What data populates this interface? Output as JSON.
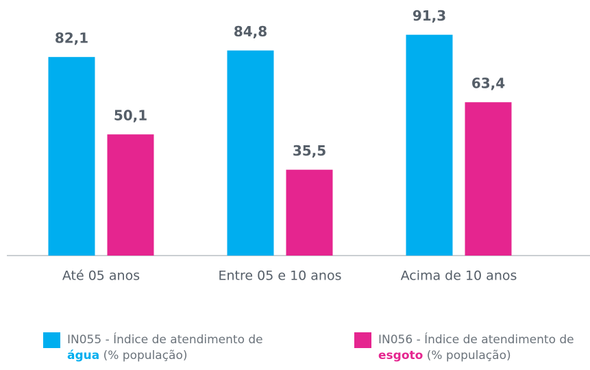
{
  "chart_data": {
    "type": "bar",
    "categories": [
      "Até 05 anos",
      "Entre 05 e 10 anos",
      "Acima de 10 anos"
    ],
    "series": [
      {
        "name": "IN055 - Índice de atendimento de água (% população)",
        "emphasis": "água",
        "color": "#00aeef",
        "values": [
          82.1,
          84.8,
          91.3
        ],
        "value_labels": [
          "82,1",
          "84,8",
          "91,3"
        ]
      },
      {
        "name": "IN056 - Índice de atendimento de esgoto (% população)",
        "emphasis": "esgoto",
        "color": "#e5258f",
        "values": [
          50.1,
          35.5,
          63.4
        ],
        "value_labels": [
          "50,1",
          "35,5",
          "63,4"
        ]
      }
    ]
  }
}
